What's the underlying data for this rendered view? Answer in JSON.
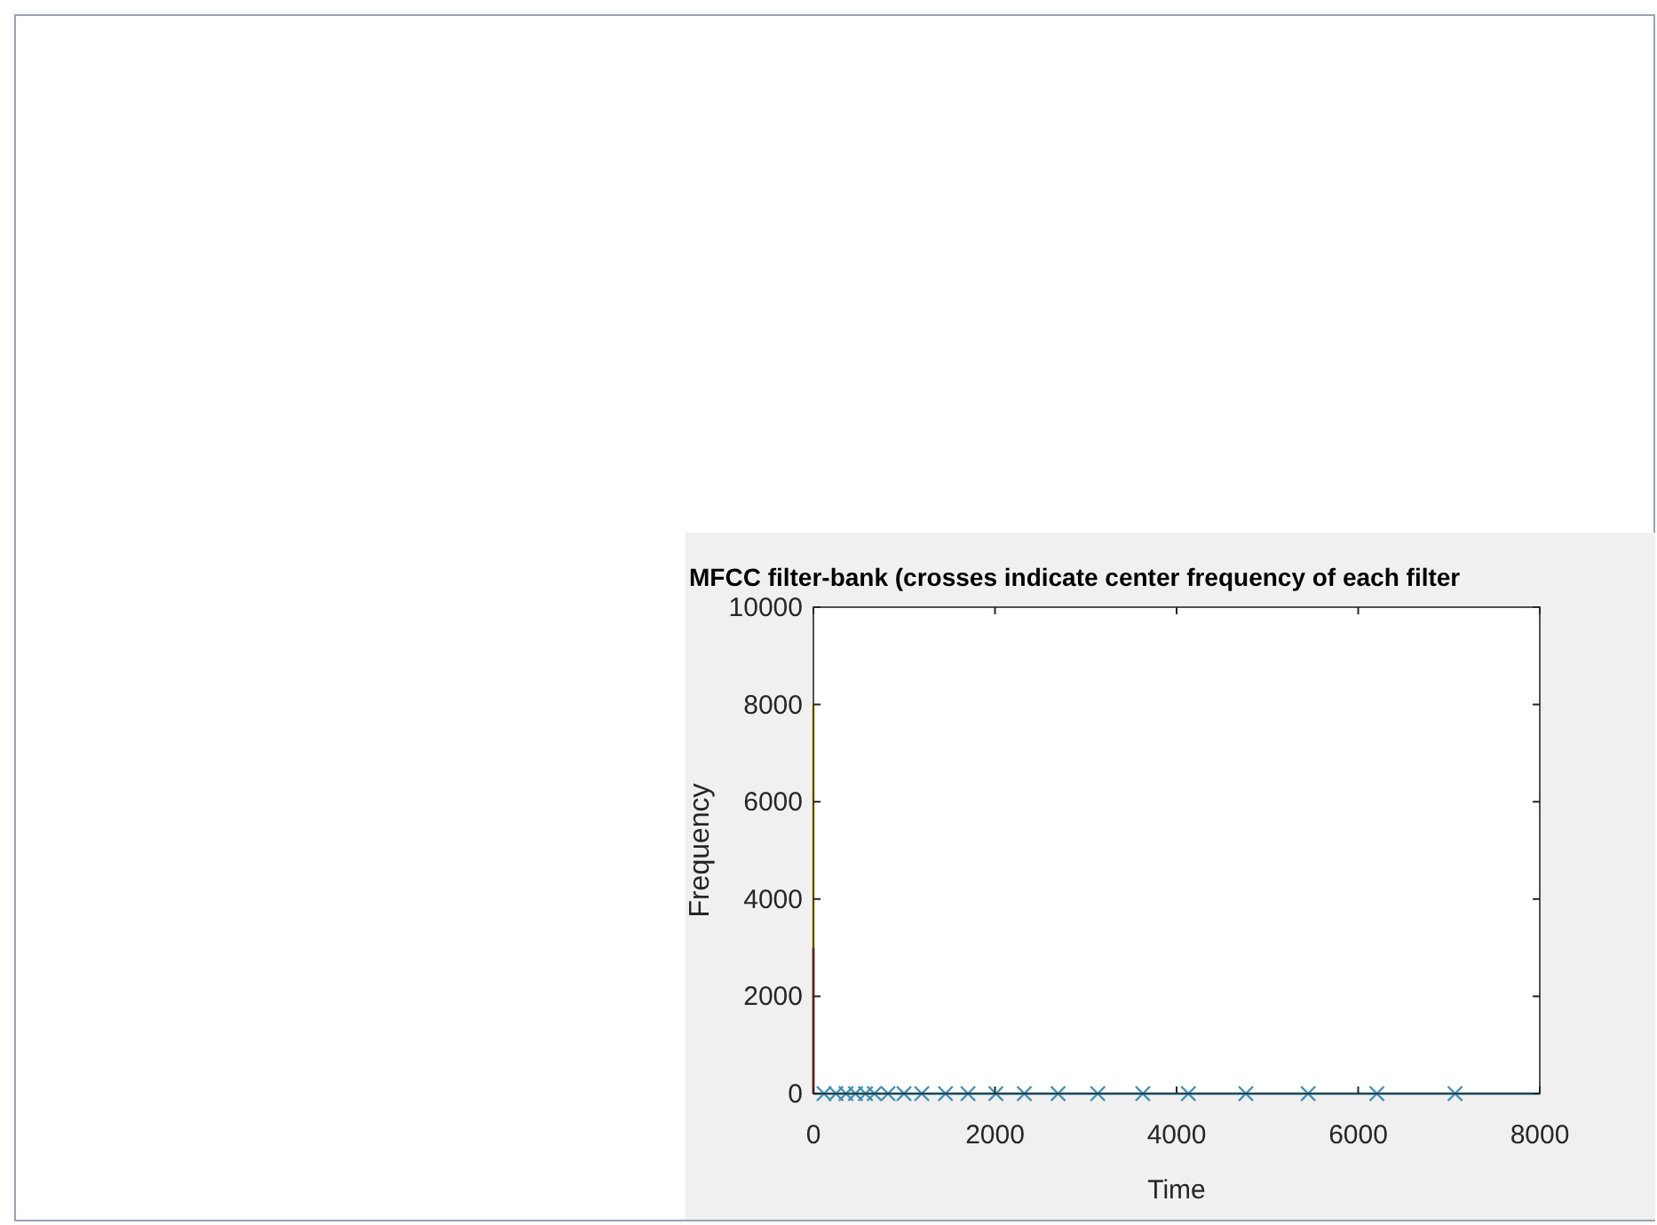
{
  "chart_data": {
    "type": "line",
    "title": "MFCC filter-bank (crosses indicate center frequency of each filter",
    "xlabel": "Time",
    "ylabel": "Frequency",
    "xlim": [
      0,
      8000
    ],
    "xticks": [
      0,
      2000,
      4000,
      6000,
      8000
    ],
    "ylim": [
      0,
      10000
    ],
    "yticks": [
      0,
      2000,
      4000,
      6000,
      8000,
      10000
    ],
    "grid": false,
    "series": [
      {
        "color": "#c0392b",
        "x": [
          0,
          0
        ],
        "values": [
          0,
          3000
        ],
        "marker": "none"
      },
      {
        "color": "#f2d21b",
        "x": [
          0,
          0
        ],
        "values": [
          3000,
          8000
        ],
        "marker": "none"
      },
      {
        "color": "#4fa8c8",
        "x": [
          0,
          8000
        ],
        "values": [
          0,
          0
        ],
        "marker": "none"
      },
      {
        "type": "scatter",
        "color": "#3f8fb5",
        "marker": "cross",
        "x": [
          117,
          248,
          359,
          463,
          574,
          672,
          822,
          998,
          1194,
          1455,
          1703,
          2010,
          2323,
          2695,
          3132,
          3628,
          4130,
          4763,
          5449,
          6206,
          7067
        ],
        "values": [
          0,
          0,
          0,
          0,
          0,
          0,
          0,
          0,
          0,
          0,
          0,
          0,
          0,
          0,
          0,
          0,
          0,
          0,
          0,
          0,
          0
        ]
      }
    ]
  }
}
